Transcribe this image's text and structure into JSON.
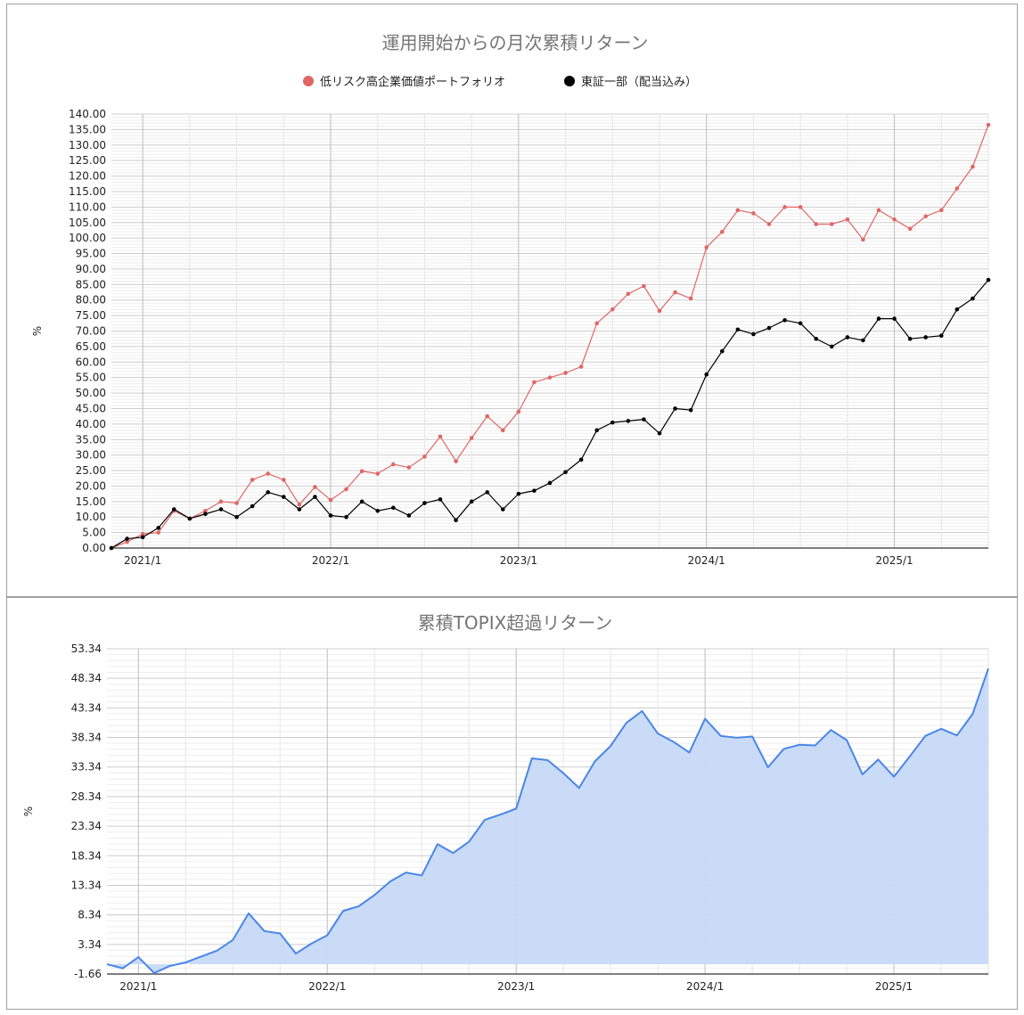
{
  "colors": {
    "portfolio": "#e06666",
    "topix": "#000000",
    "excess_line": "#4a86e8",
    "excess_fill": "#c6d9f7"
  },
  "chart_data": [
    {
      "type": "line",
      "title": "運用開始からの月次累積リターン",
      "ylabel": "%",
      "ylim": [
        0,
        140
      ],
      "yticks": [
        "0.00",
        "5.00",
        "10.00",
        "15.00",
        "20.00",
        "25.00",
        "30.00",
        "35.00",
        "40.00",
        "45.00",
        "50.00",
        "55.00",
        "60.00",
        "65.00",
        "70.00",
        "75.00",
        "80.00",
        "85.00",
        "90.00",
        "95.00",
        "100.00",
        "105.00",
        "110.00",
        "115.00",
        "120.00",
        "125.00",
        "130.00",
        "135.00",
        "140.00"
      ],
      "xticks": [
        {
          "label": "2021/1",
          "index": 2
        },
        {
          "label": "2022/1",
          "index": 14
        },
        {
          "label": "2023/1",
          "index": 26
        },
        {
          "label": "2024/1",
          "index": 38
        },
        {
          "label": "2025/1",
          "index": 50
        }
      ],
      "legend_position": "top",
      "series": [
        {
          "name": "低リスク高企業価値ポートフォリオ",
          "color": "#e06666",
          "values": [
            0,
            2,
            4.5,
            5,
            12,
            9.5,
            12,
            15,
            14.5,
            22,
            24,
            22,
            14,
            19.7,
            15.5,
            19,
            24.8,
            24,
            27,
            26,
            29.5,
            36,
            28,
            35.5,
            42.5,
            38,
            44,
            53.5,
            55,
            56.5,
            58.5,
            72.5,
            77,
            82,
            84.5,
            76.5,
            82.5,
            80.5,
            97,
            102,
            109,
            108,
            104.5,
            110,
            110,
            104.5,
            104.5,
            106,
            99.5,
            109,
            106,
            103,
            107,
            109,
            116,
            123,
            136.5
          ]
        },
        {
          "name": "東証一部（配当込み）",
          "color": "#000000",
          "values": [
            0,
            3,
            3.5,
            6.5,
            12.5,
            9.5,
            11,
            12.5,
            10,
            13.5,
            18,
            16.5,
            12.5,
            16.5,
            10.5,
            10,
            15,
            12,
            13,
            10.5,
            14.5,
            15.7,
            9,
            15,
            18,
            12.5,
            17.5,
            18.5,
            21,
            24.5,
            28.5,
            38,
            40.5,
            41,
            41.5,
            37,
            45,
            44.5,
            56,
            63.5,
            70.5,
            69,
            71,
            73.5,
            72.5,
            67.5,
            65,
            68,
            67,
            74,
            74,
            67.5,
            68,
            68.5,
            77,
            80.5,
            86.5
          ]
        }
      ]
    },
    {
      "type": "area",
      "title": "累積TOPIX超過リターン",
      "ylabel": "%",
      "ylim": [
        -1.66,
        53.34
      ],
      "yticks": [
        "-1.66",
        "3.34",
        "8.34",
        "13.34",
        "18.34",
        "23.34",
        "28.34",
        "33.34",
        "38.34",
        "43.34",
        "48.34",
        "53.34"
      ],
      "xticks": [
        {
          "label": "2021/1",
          "index": 2
        },
        {
          "label": "2022/1",
          "index": 14
        },
        {
          "label": "2023/1",
          "index": 26
        },
        {
          "label": "2024/1",
          "index": 38
        },
        {
          "label": "2025/1",
          "index": 50
        }
      ],
      "series": [
        {
          "color": "#4a86e8",
          "values": [
            0,
            -0.7,
            1.2,
            -1.5,
            -0.3,
            0.3,
            1.3,
            2.3,
            4.1,
            8.6,
            5.6,
            5.2,
            1.8,
            3.5,
            4.9,
            9.0,
            9.8,
            11.7,
            14.0,
            15.5,
            15.0,
            20.3,
            18.8,
            20.7,
            24.4,
            25.3,
            26.3,
            34.8,
            34.5,
            32.3,
            29.8,
            34.3,
            36.9,
            40.8,
            42.8,
            39.0,
            37.6,
            35.8,
            41.5,
            38.6,
            38.3,
            38.5,
            33.3,
            36.4,
            37.1,
            37.0,
            39.6,
            37.9,
            32.1,
            34.6,
            31.7,
            35.1,
            38.6,
            39.8,
            38.7,
            42.3,
            50.0
          ]
        }
      ]
    }
  ]
}
